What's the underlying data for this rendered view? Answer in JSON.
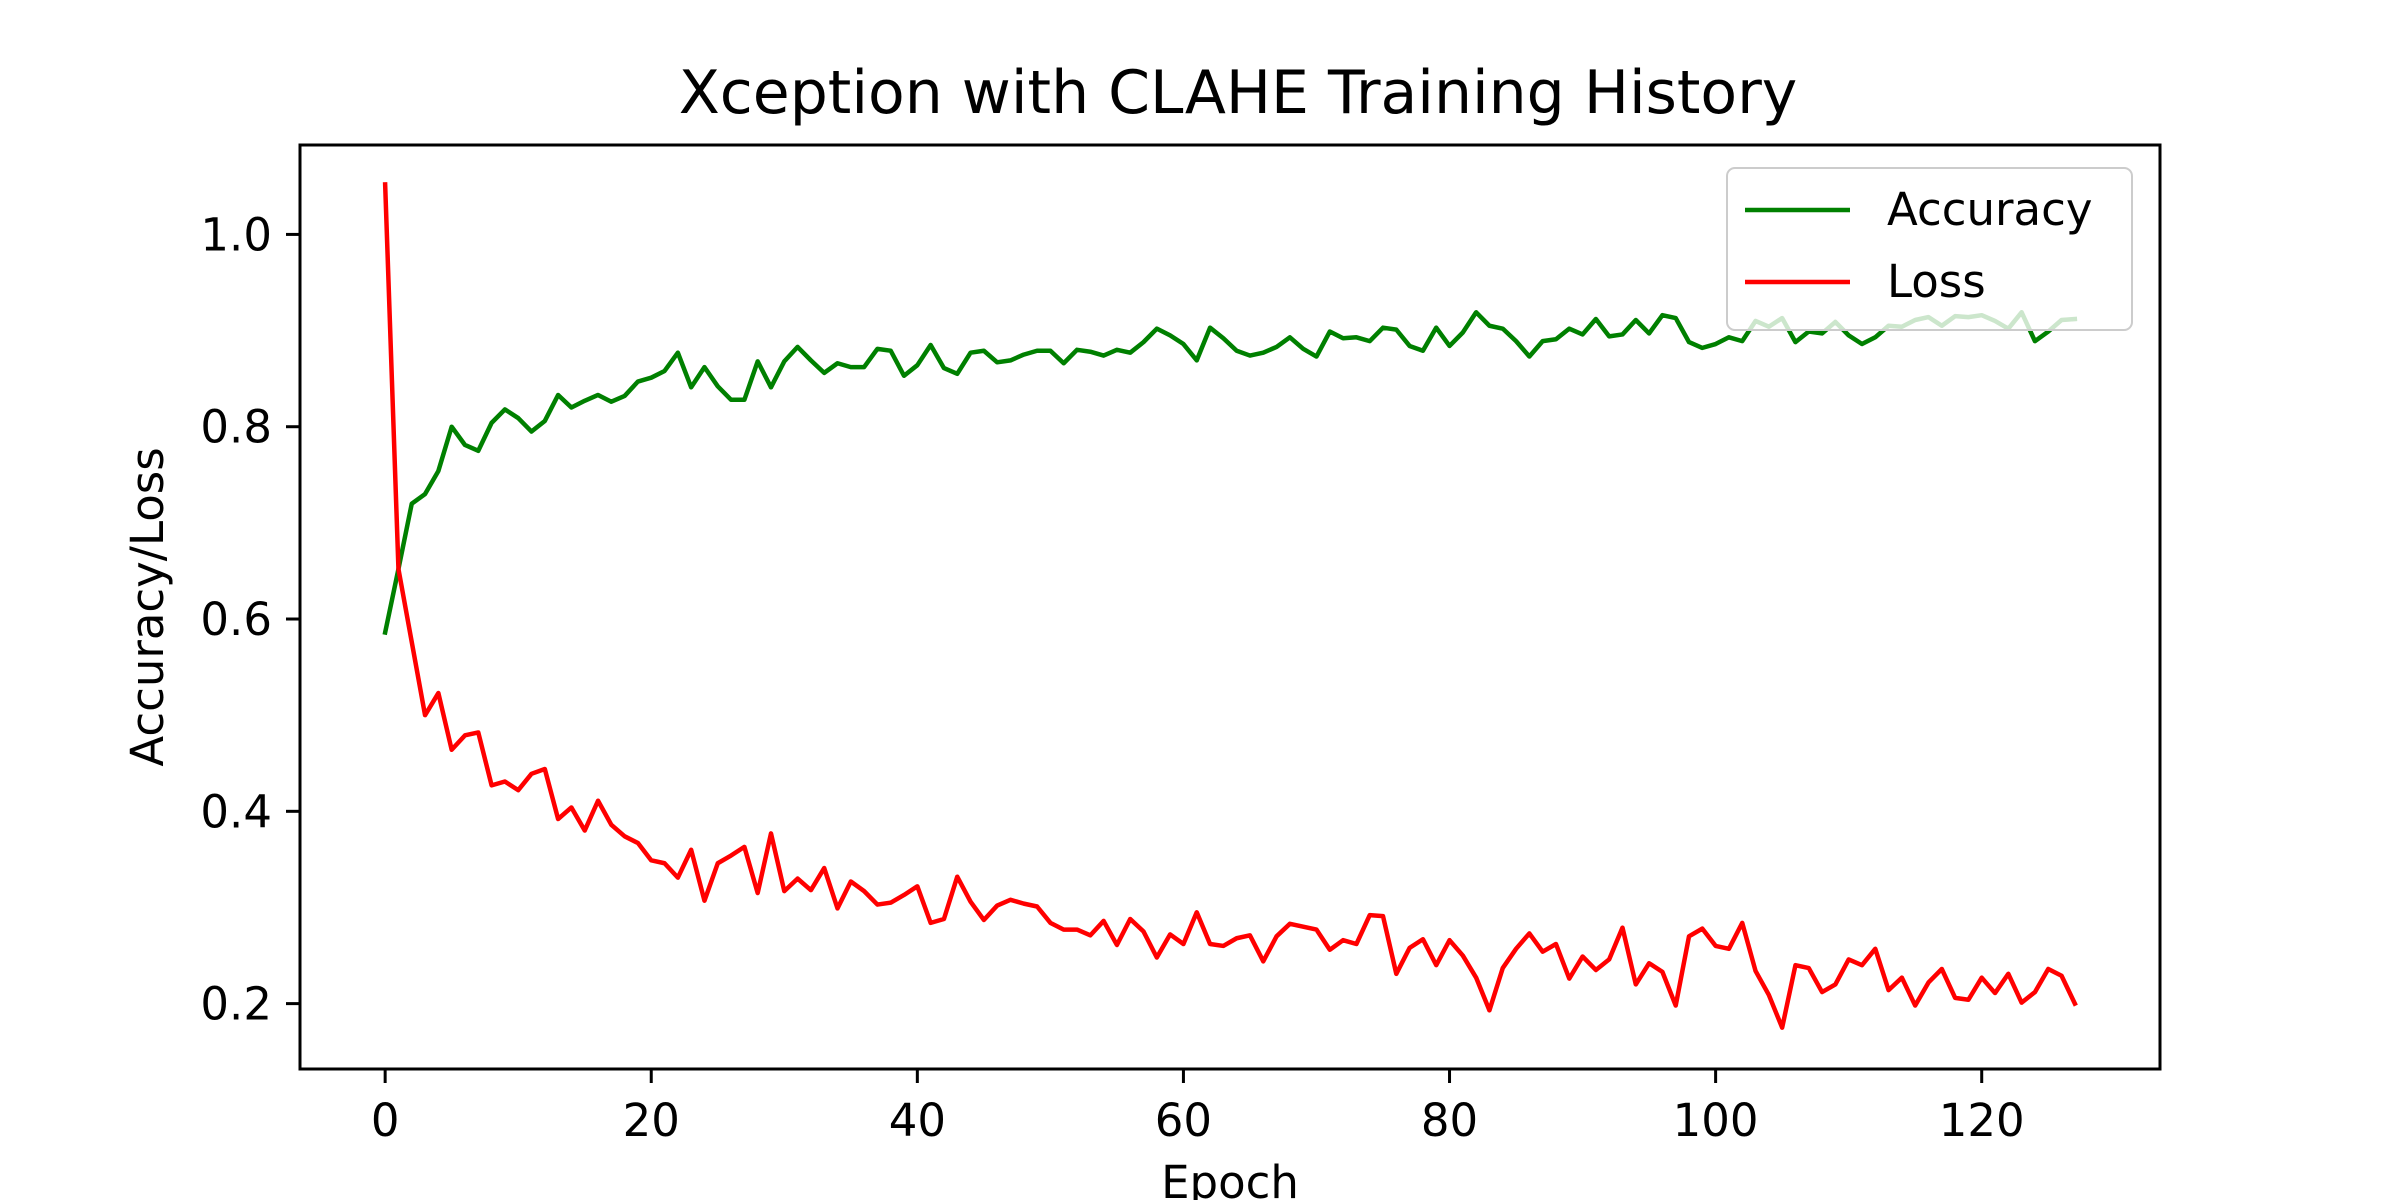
{
  "chart_data": {
    "type": "line",
    "title": "Xception with CLAHE Training History",
    "xlabel": "Epoch",
    "ylabel": "Accuracy/Loss",
    "xlim": [
      -6.4,
      133.4
    ],
    "ylim": [
      0.132,
      1.093
    ],
    "xticks": [
      0,
      20,
      40,
      60,
      80,
      100,
      120
    ],
    "yticks": [
      0.2,
      0.4,
      0.6,
      0.8,
      1.0
    ],
    "xtick_labels": [
      "0",
      "20",
      "40",
      "60",
      "80",
      "100",
      "120"
    ],
    "ytick_labels": [
      "0.2",
      "0.4",
      "0.6",
      "0.8",
      "1.0"
    ],
    "grid": false,
    "legend": "top-right",
    "x_start": 0,
    "series": [
      {
        "name": "Accuracy",
        "color": "#008000",
        "values": [
          0.586,
          0.652,
          0.72,
          0.73,
          0.754,
          0.8,
          0.781,
          0.775,
          0.804,
          0.818,
          0.809,
          0.795,
          0.806,
          0.833,
          0.82,
          0.827,
          0.833,
          0.826,
          0.832,
          0.847,
          0.851,
          0.858,
          0.877,
          0.841,
          0.862,
          0.842,
          0.828,
          0.828,
          0.868,
          0.841,
          0.868,
          0.883,
          0.869,
          0.856,
          0.866,
          0.862,
          0.862,
          0.881,
          0.879,
          0.853,
          0.864,
          0.885,
          0.861,
          0.855,
          0.877,
          0.879,
          0.867,
          0.869,
          0.875,
          0.879,
          0.879,
          0.866,
          0.88,
          0.878,
          0.874,
          0.88,
          0.877,
          0.888,
          0.902,
          0.895,
          0.886,
          0.869,
          0.903,
          0.892,
          0.879,
          0.874,
          0.877,
          0.883,
          0.893,
          0.881,
          0.873,
          0.899,
          0.892,
          0.893,
          0.889,
          0.903,
          0.901,
          0.884,
          0.879,
          0.903,
          0.884,
          0.898,
          0.919,
          0.905,
          0.902,
          0.889,
          0.873,
          0.889,
          0.891,
          0.902,
          0.896,
          0.912,
          0.894,
          0.896,
          0.911,
          0.897,
          0.916,
          0.913,
          0.888,
          0.882,
          0.886,
          0.893,
          0.889,
          0.91,
          0.904,
          0.913,
          0.888,
          0.899,
          0.897,
          0.909,
          0.895,
          0.886,
          0.893,
          0.905,
          0.904,
          0.911,
          0.914,
          0.905,
          0.915,
          0.914,
          0.916,
          0.91,
          0.902,
          0.919,
          0.889,
          0.899,
          0.911,
          0.912
        ]
      },
      {
        "name": "Loss",
        "color": "#ff0000",
        "values": [
          1.052,
          0.652,
          0.576,
          0.5,
          0.523,
          0.464,
          0.479,
          0.482,
          0.427,
          0.431,
          0.422,
          0.439,
          0.444,
          0.392,
          0.404,
          0.38,
          0.411,
          0.386,
          0.374,
          0.367,
          0.349,
          0.346,
          0.331,
          0.36,
          0.307,
          0.346,
          0.354,
          0.363,
          0.315,
          0.377,
          0.317,
          0.33,
          0.318,
          0.341,
          0.299,
          0.327,
          0.317,
          0.303,
          0.305,
          0.313,
          0.322,
          0.284,
          0.288,
          0.332,
          0.306,
          0.287,
          0.302,
          0.308,
          0.304,
          0.301,
          0.284,
          0.277,
          0.277,
          0.271,
          0.286,
          0.261,
          0.288,
          0.275,
          0.248,
          0.272,
          0.262,
          0.295,
          0.262,
          0.26,
          0.268,
          0.271,
          0.244,
          0.27,
          0.283,
          0.28,
          0.277,
          0.256,
          0.266,
          0.262,
          0.292,
          0.291,
          0.231,
          0.258,
          0.267,
          0.24,
          0.266,
          0.25,
          0.227,
          0.193,
          0.237,
          0.257,
          0.273,
          0.254,
          0.262,
          0.226,
          0.249,
          0.235,
          0.246,
          0.279,
          0.22,
          0.242,
          0.233,
          0.198,
          0.27,
          0.278,
          0.26,
          0.257,
          0.284,
          0.234,
          0.209,
          0.175,
          0.24,
          0.237,
          0.212,
          0.22,
          0.246,
          0.24,
          0.257,
          0.214,
          0.227,
          0.198,
          0.222,
          0.236,
          0.206,
          0.204,
          0.227,
          0.211,
          0.231,
          0.201,
          0.212,
          0.236,
          0.229,
          0.2
        ]
      }
    ]
  }
}
